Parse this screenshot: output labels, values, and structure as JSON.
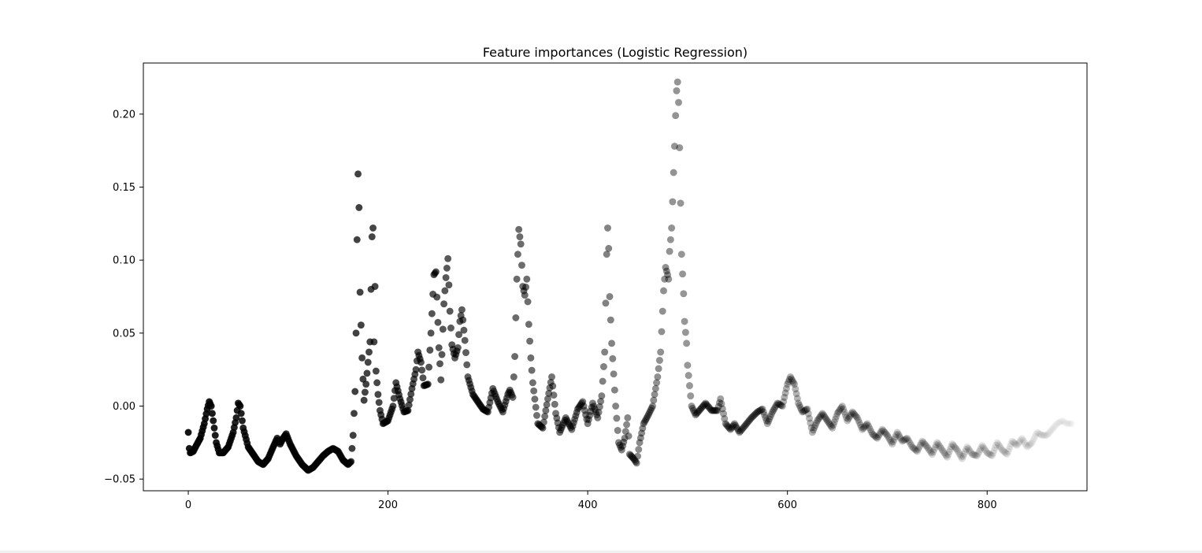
{
  "chart_data": {
    "type": "scatter",
    "title": "Feature importances (Logistic Regression)",
    "xlabel": "",
    "ylabel": "",
    "xlim": [
      -45,
      900
    ],
    "ylim": [
      -0.058,
      0.235
    ],
    "xticks": [
      0,
      200,
      400,
      600,
      800
    ],
    "yticks": [
      -0.05,
      0.0,
      0.05,
      0.1,
      0.15,
      0.2
    ],
    "xtick_labels": [
      "0",
      "200",
      "400",
      "600",
      "800"
    ],
    "ytick_labels": [
      "−0.05",
      "0.00",
      "0.05",
      "0.10",
      "0.15",
      "0.20"
    ],
    "grid": false,
    "legend": "none",
    "marker_color": "#000000",
    "opacity_note": "marker opacity fades from 1.0 at index 0 toward ~0 at the last index",
    "keypoints": [
      [
        0,
        -0.018
      ],
      [
        1,
        -0.029
      ],
      [
        2,
        -0.032
      ],
      [
        5,
        -0.031
      ],
      [
        8,
        -0.027
      ],
      [
        12,
        -0.022
      ],
      [
        16,
        -0.012
      ],
      [
        19,
        -0.002
      ],
      [
        21,
        0.003
      ],
      [
        23,
        0.0
      ],
      [
        25,
        -0.01
      ],
      [
        28,
        -0.025
      ],
      [
        31,
        -0.032
      ],
      [
        35,
        -0.032
      ],
      [
        40,
        -0.028
      ],
      [
        45,
        -0.018
      ],
      [
        48,
        -0.008
      ],
      [
        50,
        0.002
      ],
      [
        52,
        0.0
      ],
      [
        55,
        -0.015
      ],
      [
        60,
        -0.028
      ],
      [
        65,
        -0.033
      ],
      [
        70,
        -0.038
      ],
      [
        75,
        -0.04
      ],
      [
        80,
        -0.036
      ],
      [
        85,
        -0.028
      ],
      [
        89,
        -0.022
      ],
      [
        92,
        -0.026
      ],
      [
        95,
        -0.022
      ],
      [
        98,
        -0.019
      ],
      [
        102,
        -0.026
      ],
      [
        108,
        -0.034
      ],
      [
        114,
        -0.04
      ],
      [
        120,
        -0.044
      ],
      [
        125,
        -0.042
      ],
      [
        130,
        -0.038
      ],
      [
        135,
        -0.034
      ],
      [
        140,
        -0.031
      ],
      [
        145,
        -0.029
      ],
      [
        150,
        -0.031
      ],
      [
        155,
        -0.037
      ],
      [
        160,
        -0.04
      ],
      [
        163,
        -0.038
      ],
      [
        165,
        -0.02
      ],
      [
        167,
        0.01
      ],
      [
        168,
        0.05
      ],
      [
        169,
        0.114
      ],
      [
        170,
        0.159
      ],
      [
        171,
        0.136
      ],
      [
        172,
        0.078
      ],
      [
        174,
        0.033
      ],
      [
        176,
        0.004
      ],
      [
        178,
        0.015
      ],
      [
        180,
        0.03
      ],
      [
        182,
        0.044
      ],
      [
        184,
        0.116
      ],
      [
        185,
        0.122
      ],
      [
        186,
        0.044
      ],
      [
        187,
        0.082
      ],
      [
        188,
        0.024
      ],
      [
        190,
        0.008
      ],
      [
        192,
        -0.003
      ],
      [
        195,
        -0.012
      ],
      [
        200,
        -0.01
      ],
      [
        205,
        0.0
      ],
      [
        208,
        0.016
      ],
      [
        212,
        0.005
      ],
      [
        216,
        -0.004
      ],
      [
        220,
        -0.003
      ],
      [
        224,
        0.012
      ],
      [
        228,
        0.025
      ],
      [
        230,
        0.037
      ],
      [
        233,
        0.03
      ],
      [
        236,
        0.014
      ],
      [
        240,
        0.015
      ],
      [
        243,
        0.05
      ],
      [
        246,
        0.09
      ],
      [
        248,
        0.092
      ],
      [
        251,
        0.04
      ],
      [
        253,
        0.018
      ],
      [
        256,
        0.07
      ],
      [
        258,
        0.088
      ],
      [
        260,
        0.101
      ],
      [
        262,
        0.065
      ],
      [
        264,
        0.042
      ],
      [
        267,
        0.033
      ],
      [
        270,
        0.04
      ],
      [
        272,
        0.058
      ],
      [
        274,
        0.066
      ],
      [
        277,
        0.045
      ],
      [
        280,
        0.02
      ],
      [
        285,
        0.008
      ],
      [
        290,
        0.003
      ],
      [
        295,
        -0.002
      ],
      [
        300,
        -0.004
      ],
      [
        305,
        0.012
      ],
      [
        310,
        0.003
      ],
      [
        315,
        -0.004
      ],
      [
        320,
        0.008
      ],
      [
        322,
        0.011
      ],
      [
        325,
        0.006
      ],
      [
        327,
        0.034
      ],
      [
        329,
        0.087
      ],
      [
        331,
        0.121
      ],
      [
        333,
        0.111
      ],
      [
        335,
        0.082
      ],
      [
        337,
        0.076
      ],
      [
        339,
        0.087
      ],
      [
        341,
        0.056
      ],
      [
        343,
        0.033
      ],
      [
        345,
        0.016
      ],
      [
        350,
        -0.012
      ],
      [
        355,
        -0.015
      ],
      [
        360,
        0.005
      ],
      [
        364,
        0.02
      ],
      [
        368,
        -0.005
      ],
      [
        372,
        -0.018
      ],
      [
        378,
        -0.008
      ],
      [
        384,
        -0.016
      ],
      [
        390,
        -0.002
      ],
      [
        395,
        0.003
      ],
      [
        400,
        -0.012
      ],
      [
        405,
        0.002
      ],
      [
        410,
        -0.008
      ],
      [
        414,
        0.007
      ],
      [
        417,
        0.037
      ],
      [
        419,
        0.104
      ],
      [
        420,
        0.122
      ],
      [
        421,
        0.108
      ],
      [
        422,
        0.075
      ],
      [
        424,
        0.043
      ],
      [
        426,
        0.022
      ],
      [
        428,
        0.0
      ],
      [
        431,
        -0.025
      ],
      [
        434,
        -0.03
      ],
      [
        437,
        -0.022
      ],
      [
        440,
        -0.008
      ],
      [
        442,
        -0.033
      ],
      [
        446,
        -0.036
      ],
      [
        449,
        -0.039
      ],
      [
        452,
        -0.025
      ],
      [
        456,
        -0.012
      ],
      [
        460,
        -0.007
      ],
      [
        465,
        0.0
      ],
      [
        470,
        0.02
      ],
      [
        473,
        0.037
      ],
      [
        476,
        0.079
      ],
      [
        478,
        0.095
      ],
      [
        480,
        0.09
      ],
      [
        481,
        0.087
      ],
      [
        482,
        0.106
      ],
      [
        484,
        0.122
      ],
      [
        485,
        0.14
      ],
      [
        486,
        0.16
      ],
      [
        487,
        0.178
      ],
      [
        488,
        0.199
      ],
      [
        489,
        0.216
      ],
      [
        490,
        0.222
      ],
      [
        491,
        0.208
      ],
      [
        492,
        0.177
      ],
      [
        493,
        0.139
      ],
      [
        494,
        0.104
      ],
      [
        496,
        0.077
      ],
      [
        497,
        0.058
      ],
      [
        499,
        0.043
      ],
      [
        500,
        0.028
      ],
      [
        504,
        0.0
      ],
      [
        508,
        -0.006
      ],
      [
        513,
        -0.002
      ],
      [
        518,
        0.002
      ],
      [
        524,
        -0.003
      ],
      [
        530,
        -0.003
      ],
      [
        533,
        0.005
      ],
      [
        538,
        -0.012
      ],
      [
        543,
        -0.016
      ],
      [
        547,
        -0.012
      ],
      [
        552,
        -0.018
      ],
      [
        558,
        -0.013
      ],
      [
        564,
        -0.008
      ],
      [
        570,
        -0.004
      ],
      [
        575,
        -0.002
      ],
      [
        580,
        -0.012
      ],
      [
        585,
        -0.004
      ],
      [
        590,
        0.002
      ],
      [
        595,
        0.0
      ],
      [
        600,
        0.015
      ],
      [
        603,
        0.02
      ],
      [
        607,
        0.015
      ],
      [
        611,
        0.002
      ],
      [
        615,
        -0.004
      ],
      [
        620,
        -0.002
      ],
      [
        625,
        -0.018
      ],
      [
        630,
        -0.01
      ],
      [
        635,
        -0.005
      ],
      [
        640,
        -0.01
      ],
      [
        645,
        -0.015
      ],
      [
        650,
        -0.005
      ],
      [
        655,
        0.0
      ],
      [
        660,
        -0.01
      ],
      [
        665,
        -0.004
      ],
      [
        670,
        -0.008
      ],
      [
        675,
        -0.016
      ],
      [
        680,
        -0.012
      ],
      [
        685,
        -0.019
      ],
      [
        690,
        -0.022
      ],
      [
        695,
        -0.016
      ],
      [
        700,
        -0.02
      ],
      [
        705,
        -0.026
      ],
      [
        710,
        -0.018
      ],
      [
        715,
        -0.024
      ],
      [
        720,
        -0.022
      ],
      [
        725,
        -0.028
      ],
      [
        730,
        -0.031
      ],
      [
        735,
        -0.024
      ],
      [
        740,
        -0.028
      ],
      [
        745,
        -0.033
      ],
      [
        750,
        -0.025
      ],
      [
        755,
        -0.03
      ],
      [
        760,
        -0.035
      ],
      [
        765,
        -0.026
      ],
      [
        770,
        -0.03
      ],
      [
        775,
        -0.036
      ],
      [
        780,
        -0.028
      ],
      [
        785,
        -0.033
      ],
      [
        790,
        -0.034
      ],
      [
        795,
        -0.027
      ],
      [
        800,
        -0.032
      ],
      [
        805,
        -0.034
      ],
      [
        810,
        -0.025
      ],
      [
        815,
        -0.03
      ],
      [
        820,
        -0.033
      ],
      [
        825,
        -0.024
      ],
      [
        830,
        -0.027
      ],
      [
        835,
        -0.022
      ],
      [
        840,
        -0.028
      ],
      [
        845,
        -0.025
      ],
      [
        850,
        -0.018
      ],
      [
        855,
        -0.02
      ],
      [
        860,
        -0.02
      ],
      [
        865,
        -0.016
      ],
      [
        870,
        -0.012
      ],
      [
        875,
        -0.01
      ],
      [
        880,
        -0.012
      ],
      [
        885,
        -0.012
      ]
    ],
    "index_range": [
      0,
      885
    ]
  }
}
